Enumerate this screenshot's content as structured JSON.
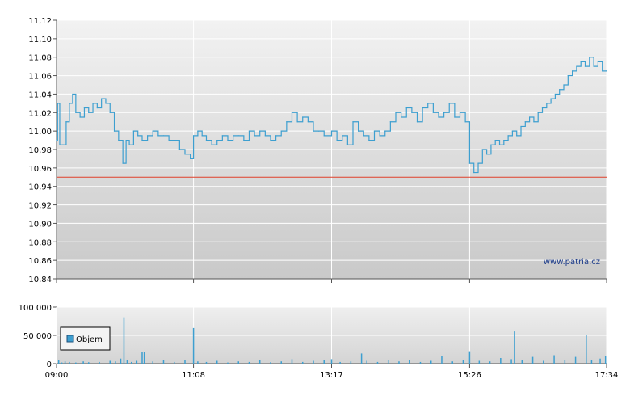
{
  "chart_data": [
    {
      "type": "line",
      "title": "",
      "xlabel": "",
      "ylabel": "",
      "ylim": [
        10.84,
        11.12
      ],
      "y_ticks": [
        "11,12",
        "11,10",
        "11,08",
        "11,06",
        "11,04",
        "11,02",
        "11,00",
        "10,98",
        "10,96",
        "10,94",
        "10,92",
        "10,90",
        "10,88",
        "10,86",
        "10,84"
      ],
      "x_range": [
        "09:00",
        "17:34"
      ],
      "grid": true,
      "reference_line": {
        "value": 10.95,
        "color": "#e0402a"
      },
      "line_color": "#3d9fd0",
      "watermark": "www.patria.cz",
      "series": [
        {
          "points": [
            [
              "09:00",
              10.99
            ],
            [
              "09:01",
              11.03
            ],
            [
              "09:03",
              10.985
            ],
            [
              "09:06",
              10.985
            ],
            [
              "09:09",
              11.01
            ],
            [
              "09:12",
              11.03
            ],
            [
              "09:15",
              11.04
            ],
            [
              "09:18",
              11.02
            ],
            [
              "09:22",
              11.015
            ],
            [
              "09:26",
              11.025
            ],
            [
              "09:30",
              11.02
            ],
            [
              "09:34",
              11.03
            ],
            [
              "09:38",
              11.025
            ],
            [
              "09:42",
              11.035
            ],
            [
              "09:46",
              11.03
            ],
            [
              "09:50",
              11.02
            ],
            [
              "09:54",
              11.0
            ],
            [
              "09:58",
              10.99
            ],
            [
              "10:02",
              10.965
            ],
            [
              "10:05",
              10.99
            ],
            [
              "10:08",
              10.985
            ],
            [
              "10:12",
              11.0
            ],
            [
              "10:16",
              10.995
            ],
            [
              "10:20",
              10.99
            ],
            [
              "10:25",
              10.995
            ],
            [
              "10:30",
              11.0
            ],
            [
              "10:35",
              10.995
            ],
            [
              "10:40",
              10.995
            ],
            [
              "10:45",
              10.99
            ],
            [
              "10:50",
              10.99
            ],
            [
              "10:55",
              10.98
            ],
            [
              "11:00",
              10.975
            ],
            [
              "11:05",
              10.97
            ],
            [
              "11:08",
              10.995
            ],
            [
              "11:12",
              11.0
            ],
            [
              "11:16",
              10.995
            ],
            [
              "11:20",
              10.99
            ],
            [
              "11:25",
              10.985
            ],
            [
              "11:30",
              10.99
            ],
            [
              "11:35",
              10.995
            ],
            [
              "11:40",
              10.99
            ],
            [
              "11:45",
              10.995
            ],
            [
              "11:50",
              10.995
            ],
            [
              "11:55",
              10.99
            ],
            [
              "12:00",
              11.0
            ],
            [
              "12:05",
              10.995
            ],
            [
              "12:10",
              11.0
            ],
            [
              "12:15",
              10.995
            ],
            [
              "12:20",
              10.99
            ],
            [
              "12:25",
              10.995
            ],
            [
              "12:30",
              11.0
            ],
            [
              "12:35",
              11.01
            ],
            [
              "12:40",
              11.02
            ],
            [
              "12:45",
              11.01
            ],
            [
              "12:50",
              11.015
            ],
            [
              "12:55",
              11.01
            ],
            [
              "13:00",
              11.0
            ],
            [
              "13:05",
              11.0
            ],
            [
              "13:10",
              10.995
            ],
            [
              "13:17",
              11.0
            ],
            [
              "13:22",
              10.99
            ],
            [
              "13:27",
              10.995
            ],
            [
              "13:32",
              10.985
            ],
            [
              "13:37",
              11.01
            ],
            [
              "13:42",
              11.0
            ],
            [
              "13:47",
              10.995
            ],
            [
              "13:52",
              10.99
            ],
            [
              "13:57",
              11.0
            ],
            [
              "14:02",
              10.995
            ],
            [
              "14:07",
              11.0
            ],
            [
              "14:12",
              11.01
            ],
            [
              "14:17",
              11.02
            ],
            [
              "14:22",
              11.015
            ],
            [
              "14:27",
              11.025
            ],
            [
              "14:32",
              11.02
            ],
            [
              "14:37",
              11.01
            ],
            [
              "14:42",
              11.025
            ],
            [
              "14:47",
              11.03
            ],
            [
              "14:52",
              11.02
            ],
            [
              "14:57",
              11.015
            ],
            [
              "15:02",
              11.02
            ],
            [
              "15:07",
              11.03
            ],
            [
              "15:12",
              11.015
            ],
            [
              "15:17",
              11.02
            ],
            [
              "15:22",
              11.01
            ],
            [
              "15:26",
              10.965
            ],
            [
              "15:30",
              10.955
            ],
            [
              "15:34",
              10.965
            ],
            [
              "15:38",
              10.98
            ],
            [
              "15:42",
              10.975
            ],
            [
              "15:46",
              10.985
            ],
            [
              "15:50",
              10.99
            ],
            [
              "15:54",
              10.985
            ],
            [
              "15:58",
              10.99
            ],
            [
              "16:02",
              10.995
            ],
            [
              "16:06",
              11.0
            ],
            [
              "16:10",
              10.995
            ],
            [
              "16:14",
              11.005
            ],
            [
              "16:18",
              11.01
            ],
            [
              "16:22",
              11.015
            ],
            [
              "16:26",
              11.01
            ],
            [
              "16:30",
              11.02
            ],
            [
              "16:34",
              11.025
            ],
            [
              "16:38",
              11.03
            ],
            [
              "16:42",
              11.035
            ],
            [
              "16:46",
              11.04
            ],
            [
              "16:50",
              11.045
            ],
            [
              "16:54",
              11.05
            ],
            [
              "16:58",
              11.06
            ],
            [
              "17:02",
              11.065
            ],
            [
              "17:06",
              11.07
            ],
            [
              "17:10",
              11.075
            ],
            [
              "17:14",
              11.07
            ],
            [
              "17:18",
              11.08
            ],
            [
              "17:22",
              11.07
            ],
            [
              "17:26",
              11.075
            ],
            [
              "17:30",
              11.065
            ],
            [
              "17:34",
              11.065
            ]
          ]
        }
      ]
    },
    {
      "type": "bar",
      "title": "",
      "xlabel": "",
      "ylabel": "",
      "ylim": [
        0,
        100000
      ],
      "y_ticks": [
        "100 000",
        "50 000",
        "0"
      ],
      "x_ticks": [
        "09:00",
        "11:08",
        "13:17",
        "15:26",
        "17:34"
      ],
      "x_range": [
        "09:00",
        "17:34"
      ],
      "grid": true,
      "bar_color": "#3d9fd0",
      "legend": {
        "placement": "left",
        "entries": [
          "Objem"
        ]
      },
      "series": [
        {
          "name": "Objem",
          "points": [
            [
              "09:02",
              6000
            ],
            [
              "09:05",
              2000
            ],
            [
              "09:08",
              4000
            ],
            [
              "09:12",
              3000
            ],
            [
              "09:18",
              2000
            ],
            [
              "09:25",
              4000
            ],
            [
              "09:30",
              2500
            ],
            [
              "09:40",
              3000
            ],
            [
              "09:50",
              5000
            ],
            [
              "09:55",
              4000
            ],
            [
              "10:00",
              9000
            ],
            [
              "10:03",
              82000
            ],
            [
              "10:06",
              7000
            ],
            [
              "10:10",
              3000
            ],
            [
              "10:15",
              5000
            ],
            [
              "10:20",
              21000
            ],
            [
              "10:22",
              20000
            ],
            [
              "10:30",
              4000
            ],
            [
              "10:40",
              6000
            ],
            [
              "10:50",
              3000
            ],
            [
              "11:00",
              7000
            ],
            [
              "11:08",
              63000
            ],
            [
              "11:12",
              4000
            ],
            [
              "11:20",
              3000
            ],
            [
              "11:30",
              5000
            ],
            [
              "11:40",
              2000
            ],
            [
              "11:50",
              4000
            ],
            [
              "12:00",
              3000
            ],
            [
              "12:10",
              6000
            ],
            [
              "12:20",
              2500
            ],
            [
              "12:30",
              4000
            ],
            [
              "12:40",
              8000
            ],
            [
              "12:50",
              3000
            ],
            [
              "13:00",
              5000
            ],
            [
              "13:10",
              6000
            ],
            [
              "13:17",
              8000
            ],
            [
              "13:25",
              3000
            ],
            [
              "13:35",
              4000
            ],
            [
              "13:45",
              18000
            ],
            [
              "13:50",
              5000
            ],
            [
              "14:00",
              3000
            ],
            [
              "14:10",
              6000
            ],
            [
              "14:20",
              4000
            ],
            [
              "14:30",
              7000
            ],
            [
              "14:40",
              3000
            ],
            [
              "14:50",
              5000
            ],
            [
              "15:00",
              14000
            ],
            [
              "15:10",
              4000
            ],
            [
              "15:20",
              6000
            ],
            [
              "15:26",
              22000
            ],
            [
              "15:35",
              5000
            ],
            [
              "15:45",
              4000
            ],
            [
              "15:55",
              10000
            ],
            [
              "16:05",
              8000
            ],
            [
              "16:08",
              57000
            ],
            [
              "16:15",
              6000
            ],
            [
              "16:25",
              12000
            ],
            [
              "16:35",
              5000
            ],
            [
              "16:45",
              15000
            ],
            [
              "16:55",
              7000
            ],
            [
              "17:05",
              12000
            ],
            [
              "17:15",
              51000
            ],
            [
              "17:20",
              6000
            ],
            [
              "17:28",
              9000
            ],
            [
              "17:33",
              13000
            ]
          ]
        }
      ]
    }
  ]
}
